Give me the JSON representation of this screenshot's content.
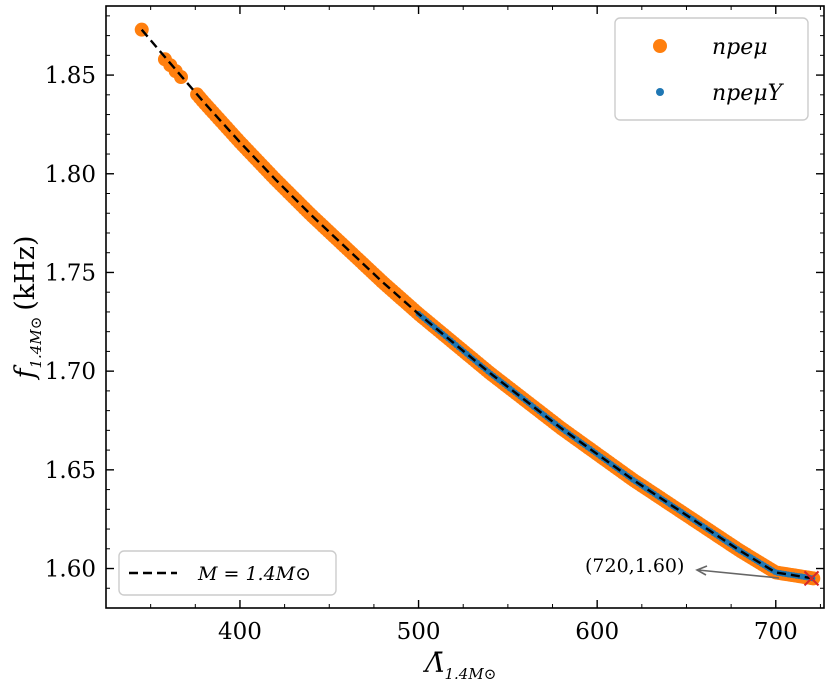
{
  "chart_data": {
    "type": "scatter",
    "title": "",
    "xlabel": "Λ̄",
    "xlabel_sub": "1.4M⊙",
    "ylabel": "f",
    "ylabel_sub": "1.4M⊙",
    "ylabel_unit": "(kHz)",
    "xlim": [
      325,
      727
    ],
    "ylim": [
      1.58,
      1.885
    ],
    "x_ticks": [
      400,
      500,
      600,
      700
    ],
    "x_tick_labels": [
      "400",
      "500",
      "600",
      "700"
    ],
    "y_ticks": [
      1.6,
      1.65,
      1.7,
      1.75,
      1.8,
      1.85
    ],
    "y_tick_labels": [
      "1.60",
      "1.65",
      "1.70",
      "1.75",
      "1.80",
      "1.85"
    ],
    "grid": false,
    "series": [
      {
        "name": "npeμ",
        "kind": "scatter",
        "color": "#ff7f0e",
        "x_range": [
          376,
          721
        ],
        "extra_points": [
          [
            345,
            1.873
          ],
          [
            358,
            1.858
          ],
          [
            361,
            1.855
          ],
          [
            364,
            1.852
          ],
          [
            367,
            1.849
          ]
        ]
      },
      {
        "name": "npeμY",
        "kind": "scatter",
        "color": "#1f77b4",
        "x_range": [
          500,
          721
        ]
      },
      {
        "name": "M = 1.4M⊙",
        "kind": "line",
        "style": "dashed",
        "color": "#000000",
        "x": [
          345,
          360,
          380,
          400,
          420,
          440,
          460,
          480,
          500,
          520,
          540,
          560,
          580,
          600,
          620,
          640,
          660,
          680,
          700,
          721
        ],
        "y": [
          1.873,
          1.857,
          1.836,
          1.816,
          1.797,
          1.779,
          1.762,
          1.745,
          1.729,
          1.714,
          1.699,
          1.685,
          1.671,
          1.658,
          1.645,
          1.633,
          1.621,
          1.609,
          1.598,
          1.595
        ]
      }
    ],
    "highlight_point": {
      "x": 720,
      "y": 1.595,
      "marker": "x",
      "color": "#d62728"
    },
    "annotation": {
      "text": "(720,1.60)",
      "arrow_to": [
        720,
        1.595
      ]
    },
    "legend_upper": {
      "placement": "top-right",
      "entries": [
        "npeμ",
        "npeμY"
      ]
    },
    "legend_lower": {
      "placement": "bottom-left",
      "entries": [
        "M = 1.4M⊙"
      ]
    }
  }
}
